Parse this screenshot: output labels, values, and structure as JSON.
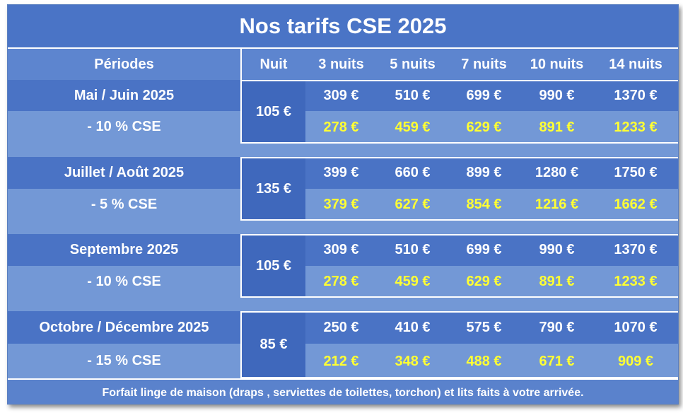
{
  "title": "Nos tarifs CSE 2025",
  "header": {
    "periodes": "Périodes",
    "nuit": "Nuit",
    "cols": [
      "3 nuits",
      "5 nuits",
      "7 nuits",
      "10 nuits",
      "14 nuits"
    ]
  },
  "periods": [
    {
      "name": "Mai / Juin 2025",
      "discount": "- 10 % CSE",
      "nuit": "105 €",
      "prices": [
        "309 €",
        "510 €",
        "699 €",
        "990 €",
        "1370 €"
      ],
      "cse": [
        "278 €",
        "459 €",
        "629 €",
        "891 €",
        "1233 €"
      ]
    },
    {
      "name": "Juillet / Août 2025",
      "discount": "- 5 % CSE",
      "nuit": "135 €",
      "prices": [
        "399 €",
        "660 €",
        "899 €",
        "1280 €",
        "1750 €"
      ],
      "cse": [
        "379 €",
        "627 €",
        "854 €",
        "1216 €",
        "1662 €"
      ]
    },
    {
      "name": "Septembre 2025",
      "discount": "- 10 % CSE",
      "nuit": "105 €",
      "prices": [
        "309 €",
        "510 €",
        "699 €",
        "990 €",
        "1370 €"
      ],
      "cse": [
        "278 €",
        "459 €",
        "629 €",
        "891 €",
        "1233 €"
      ]
    },
    {
      "name": "Octobre / Décembre 2025",
      "discount": "- 15 % CSE",
      "nuit": "85 €",
      "prices": [
        "250 €",
        "410 €",
        "575 €",
        "790 €",
        "1070 €"
      ],
      "cse": [
        "212 €",
        "348 €",
        "488 €",
        "671 €",
        "909 €"
      ]
    }
  ],
  "footer": "Forfait linge de maison (draps , serviettes de toilettes, torchon) et lits faits à votre arrivée.",
  "colors": {
    "title_bg": "#4a74c6",
    "body_bg": "#6f94d4",
    "discount_text": "#ffff33"
  }
}
